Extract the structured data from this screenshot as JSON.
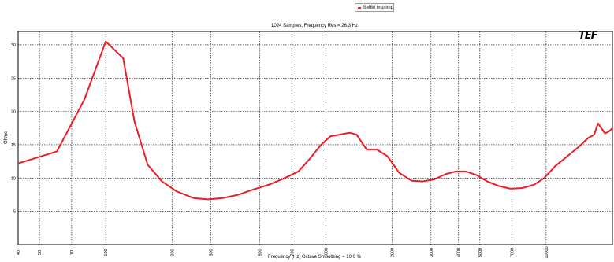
{
  "legend": {
    "label": "SM80 imp.imp",
    "color": "#ee1c25"
  },
  "logo_text": "TEF",
  "chart_data": {
    "type": "line",
    "title": "1024 Samples, Frequency Res = 26.3 Hz",
    "xlabel": "Frequency (Hz)  Octave Smoothing = 10.0 %",
    "ylabel": "Ohms",
    "x_scale": "log",
    "xlim": [
      40,
      20000
    ],
    "ylim": [
      0,
      32
    ],
    "grid": true,
    "x_ticks": [
      {
        "v": 40,
        "label": "40"
      },
      {
        "v": 50,
        "label": "50"
      },
      {
        "v": 70,
        "label": "70"
      },
      {
        "v": 100,
        "label": "100"
      },
      {
        "v": 200,
        "label": "200"
      },
      {
        "v": 300,
        "label": "300"
      },
      {
        "v": 500,
        "label": "500"
      },
      {
        "v": 700,
        "label": "700"
      },
      {
        "v": 1000,
        "label": "1000"
      },
      {
        "v": 2000,
        "label": "2000"
      },
      {
        "v": 3000,
        "label": "3000"
      },
      {
        "v": 4000,
        "label": "4000"
      },
      {
        "v": 5000,
        "label": "5000"
      },
      {
        "v": 7000,
        "label": "7000"
      },
      {
        "v": 10000,
        "label": "10000"
      }
    ],
    "y_ticks": [
      5,
      10,
      15,
      20,
      25,
      30
    ],
    "series": [
      {
        "name": "SM80 imp.imp",
        "color": "#ee1c25",
        "x": [
          40,
          60,
          80,
          100,
          120,
          135,
          155,
          180,
          210,
          250,
          290,
          340,
          400,
          470,
          550,
          650,
          750,
          850,
          950,
          1050,
          1150,
          1280,
          1380,
          1530,
          1700,
          1900,
          2150,
          2450,
          2750,
          3100,
          3500,
          3900,
          4300,
          4800,
          5400,
          6100,
          6900,
          7800,
          8800,
          9800,
          11000,
          12500,
          14200,
          15500,
          16500,
          17200,
          17800,
          18500,
          19300,
          20000
        ],
        "y": [
          12.2,
          14.0,
          21.8,
          30.5,
          28.0,
          18.5,
          12.0,
          9.5,
          8.0,
          7.0,
          6.8,
          7.0,
          7.5,
          8.3,
          9.0,
          10.0,
          11.0,
          13.0,
          15.0,
          16.3,
          16.5,
          16.8,
          16.5,
          14.3,
          14.3,
          13.3,
          10.8,
          9.6,
          9.5,
          9.8,
          10.6,
          11.0,
          11.0,
          10.5,
          9.5,
          8.8,
          8.4,
          8.5,
          9.0,
          10.0,
          11.8,
          13.3,
          14.8,
          16.0,
          16.5,
          18.2,
          17.5,
          16.7,
          17.0,
          17.5
        ]
      }
    ]
  }
}
